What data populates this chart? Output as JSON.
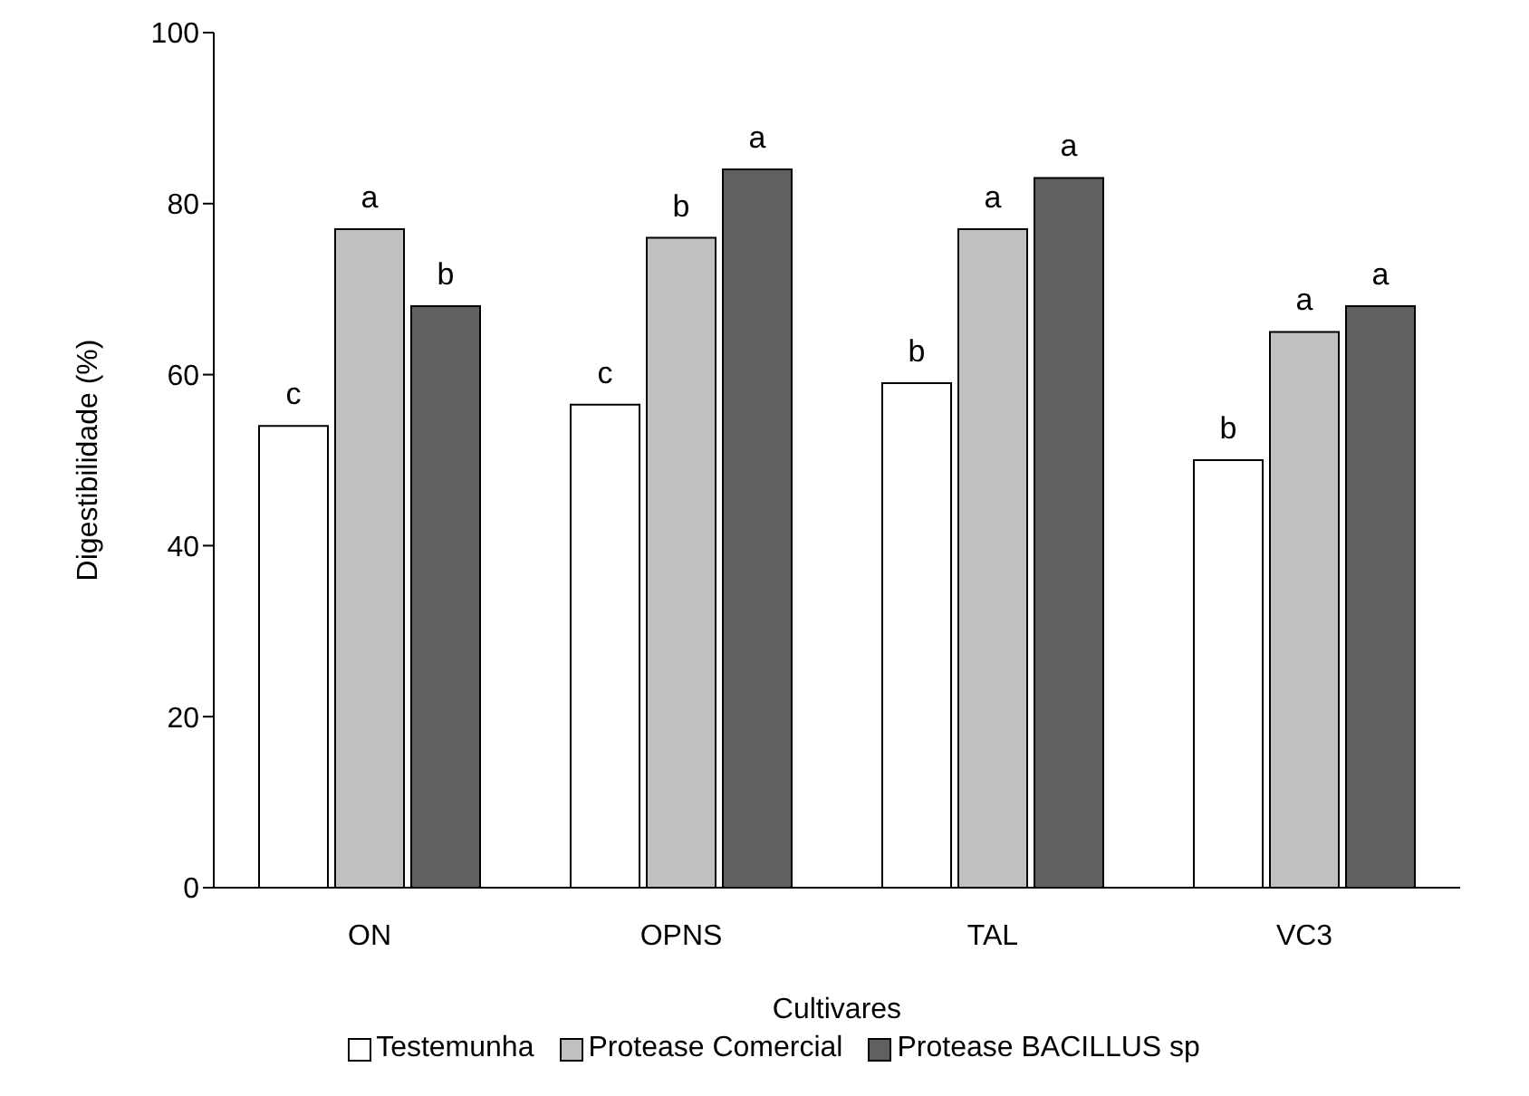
{
  "chart_data": {
    "type": "bar",
    "xlabel": "Cultivares",
    "ylabel": "Digestibilidade (%)",
    "categories": [
      "ON",
      "OPNS",
      "TAL",
      "VC3"
    ],
    "series": [
      {
        "name": "Testemunha",
        "color": "#ffffff",
        "values": [
          54,
          56.5,
          59,
          50
        ],
        "value_labels": [
          "c",
          "c",
          "b",
          "b"
        ]
      },
      {
        "name": "Protease Comercial",
        "color": "#c0c0c0",
        "values": [
          77,
          76,
          77,
          65
        ],
        "value_labels": [
          "a",
          "b",
          "a",
          "a"
        ]
      },
      {
        "name": "Protease BACILLUS  sp",
        "color": "#606060",
        "values": [
          68,
          84,
          83,
          68
        ],
        "value_labels": [
          "b",
          "a",
          "a",
          "a"
        ]
      }
    ],
    "ylim": [
      0,
      100
    ],
    "yticks": [
      0,
      20,
      40,
      60,
      80,
      100
    ],
    "grid": false,
    "legend": "bottom"
  }
}
